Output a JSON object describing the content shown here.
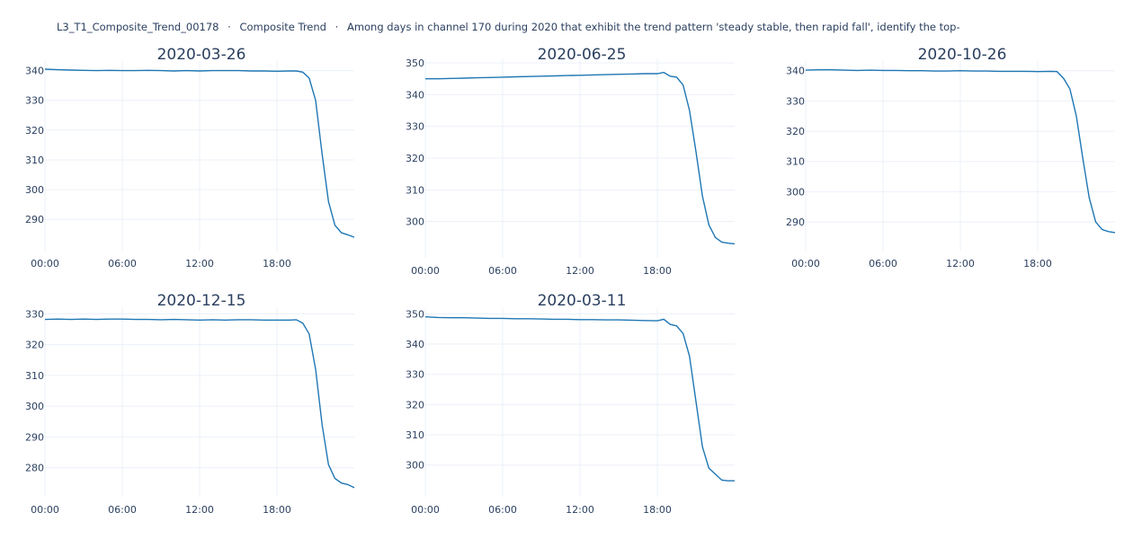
{
  "header": {
    "id": "L3_T1_Composite_Trend_00178",
    "category": "Composite Trend",
    "question": "Among days in channel 170 during 2020 that exhibit the trend pattern 'steady stable, then rapid fall', identify the top-",
    "separator": "·"
  },
  "colors": {
    "line": "#1f77b4",
    "grid": "#ebf0f8",
    "text": "#2a3f5f",
    "background": "#ffffff"
  },
  "chart_data": [
    {
      "type": "line",
      "title": "2020-03-26",
      "x_ticks": [
        "00:00",
        "06:00",
        "12:00",
        "18:00"
      ],
      "ylim": [
        281,
        342
      ],
      "y_ticks": [
        290,
        300,
        310,
        320,
        330,
        340
      ],
      "x_hours": [
        0,
        1,
        2,
        3,
        4,
        5,
        6,
        7,
        8,
        9,
        10,
        11,
        12,
        13,
        14,
        15,
        16,
        17,
        18,
        19,
        19.5,
        20,
        20.5,
        21,
        21.5,
        22,
        22.5,
        23,
        23.5,
        24
      ],
      "y": [
        340.5,
        340.3,
        340.2,
        340.1,
        340.0,
        340.1,
        340.0,
        340.0,
        340.1,
        340.0,
        339.9,
        340.0,
        339.9,
        340.0,
        340.0,
        340.0,
        339.9,
        339.9,
        339.8,
        339.9,
        339.9,
        339.5,
        337.5,
        330.0,
        312.0,
        296.0,
        288.0,
        285.5,
        284.8,
        284.0
      ]
    },
    {
      "type": "line",
      "title": "2020-06-25",
      "x_ticks": [
        "00:00",
        "06:00",
        "12:00",
        "18:00"
      ],
      "ylim": [
        290,
        350
      ],
      "y_ticks": [
        300,
        310,
        320,
        330,
        340,
        350
      ],
      "x_hours": [
        0,
        1,
        2,
        3,
        4,
        5,
        6,
        7,
        8,
        9,
        10,
        11,
        12,
        13,
        14,
        15,
        16,
        17,
        18,
        18.5,
        19,
        19.5,
        20,
        20.5,
        21,
        21.5,
        22,
        22.5,
        23,
        23.5,
        24
      ],
      "y": [
        345.0,
        345.0,
        345.1,
        345.2,
        345.3,
        345.4,
        345.5,
        345.6,
        345.7,
        345.8,
        345.9,
        346.0,
        346.1,
        346.2,
        346.3,
        346.4,
        346.5,
        346.6,
        346.6,
        347.0,
        345.8,
        345.5,
        343.0,
        335.0,
        322.0,
        308.0,
        299.0,
        295.0,
        293.5,
        293.2,
        293.0
      ]
    },
    {
      "type": "line",
      "title": "2020-10-26",
      "x_ticks": [
        "00:00",
        "06:00",
        "12:00",
        "18:00"
      ],
      "ylim": [
        282,
        342
      ],
      "y_ticks": [
        290,
        300,
        310,
        320,
        330,
        340
      ],
      "x_hours": [
        0,
        1,
        2,
        3,
        4,
        5,
        6,
        7,
        8,
        9,
        10,
        11,
        12,
        13,
        14,
        15,
        16,
        17,
        18,
        19,
        19.5,
        20,
        20.5,
        21,
        21.5,
        22,
        22.5,
        23,
        23.5,
        24
      ],
      "y": [
        340.2,
        340.3,
        340.3,
        340.2,
        340.1,
        340.2,
        340.1,
        340.1,
        340.0,
        340.0,
        339.9,
        339.9,
        340.0,
        339.9,
        339.9,
        339.8,
        339.8,
        339.8,
        339.7,
        339.8,
        339.7,
        337.5,
        334.0,
        325.0,
        311.0,
        298.0,
        290.0,
        287.5,
        286.8,
        286.5
      ]
    },
    {
      "type": "line",
      "title": "2020-12-15",
      "x_ticks": [
        "00:00",
        "06:00",
        "12:00",
        "18:00"
      ],
      "ylim": [
        272,
        331
      ],
      "y_ticks": [
        280,
        290,
        300,
        310,
        320,
        330
      ],
      "x_hours": [
        0,
        1,
        2,
        3,
        4,
        5,
        6,
        7,
        8,
        9,
        10,
        11,
        12,
        13,
        14,
        15,
        16,
        17,
        18,
        19,
        19.5,
        20,
        20.5,
        21,
        21.5,
        22,
        22.5,
        23,
        23.5,
        24
      ],
      "y": [
        328.2,
        328.3,
        328.2,
        328.3,
        328.2,
        328.3,
        328.3,
        328.2,
        328.2,
        328.1,
        328.2,
        328.1,
        328.0,
        328.1,
        328.0,
        328.1,
        328.1,
        328.0,
        328.0,
        328.0,
        328.1,
        327.0,
        323.5,
        312.0,
        294.0,
        281.0,
        276.5,
        275.0,
        274.5,
        273.5
      ]
    },
    {
      "type": "line",
      "title": "2020-03-11",
      "x_ticks": [
        "00:00",
        "06:00",
        "12:00",
        "18:00"
      ],
      "ylim": [
        291,
        351
      ],
      "y_ticks": [
        300,
        310,
        320,
        330,
        340,
        350
      ],
      "x_hours": [
        0,
        1,
        2,
        3,
        4,
        5,
        6,
        7,
        8,
        9,
        10,
        11,
        12,
        13,
        14,
        15,
        16,
        17,
        18,
        18.5,
        19,
        19.5,
        20,
        20.5,
        21,
        21.5,
        22,
        22.5,
        23,
        23.5,
        24
      ],
      "y": [
        349.0,
        348.8,
        348.7,
        348.7,
        348.6,
        348.5,
        348.5,
        348.4,
        348.4,
        348.3,
        348.2,
        348.2,
        348.1,
        348.1,
        348.0,
        348.0,
        347.9,
        347.8,
        347.7,
        348.2,
        346.5,
        346.0,
        343.5,
        336.0,
        321.0,
        306.0,
        299.0,
        297.0,
        295.0,
        294.8,
        294.8
      ]
    }
  ]
}
